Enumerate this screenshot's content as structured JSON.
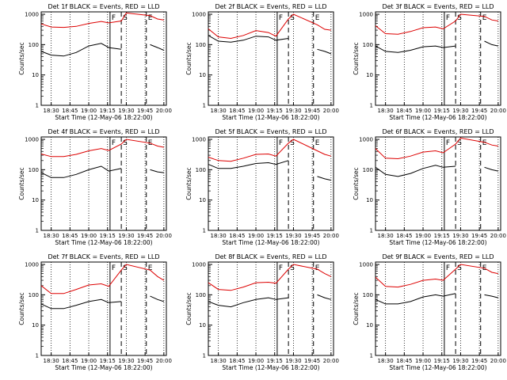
{
  "figure": {
    "background": "#ffffff"
  },
  "colors": {
    "events": "#000000",
    "lld": "#dd0000",
    "axis": "#000000"
  },
  "shared": {
    "xlabel": "Start Time (12-May-06 18:22:00)",
    "ylabel": "Counts/sec",
    "xticks": [
      "18:30",
      "18:45",
      "19:00",
      "19:15",
      "19:30",
      "19:45",
      "20:00"
    ],
    "yticks": [
      "1",
      "10",
      "100",
      "1000"
    ],
    "ylim": [
      1,
      1200
    ],
    "yscale": "log",
    "marks": [
      {
        "time": "19:17",
        "symbol": "F"
      },
      {
        "time": "19:26",
        "symbol": "S"
      },
      {
        "time": "19:46",
        "symbol": "E"
      }
    ]
  },
  "chart_data": [
    {
      "type": "line",
      "title": "Det 1f  BLACK = Events, RED = LLD",
      "x": [
        "18:22",
        "18:30",
        "18:40",
        "18:50",
        "19:00",
        "19:10",
        "19:16",
        "19:26",
        "19:30",
        "19:49",
        "19:55",
        "20:00"
      ],
      "series": [
        {
          "name": "Events",
          "values": [
            60,
            45,
            42,
            55,
            90,
            110,
            80,
            70,
            null,
            100,
            80,
            65
          ]
        },
        {
          "name": "LLD",
          "values": [
            480,
            380,
            370,
            400,
            500,
            580,
            520,
            600,
            1100,
            900,
            700,
            650
          ]
        }
      ]
    },
    {
      "type": "line",
      "title": "Det 2f  BLACK = Events, RED = LLD",
      "x": [
        "18:22",
        "18:30",
        "18:40",
        "18:50",
        "19:00",
        "19:10",
        "19:16",
        "19:26",
        "19:30",
        "19:49",
        "19:55",
        "20:00"
      ],
      "series": [
        {
          "name": "Events",
          "values": [
            200,
            130,
            120,
            140,
            190,
            180,
            140,
            160,
            null,
            70,
            60,
            50
          ]
        },
        {
          "name": "LLD",
          "values": [
            330,
            180,
            160,
            200,
            290,
            250,
            190,
            700,
            1000,
            450,
            320,
            300
          ]
        }
      ]
    },
    {
      "type": "line",
      "title": "Det 3f  BLACK = Events, RED = LLD",
      "x": [
        "18:22",
        "18:30",
        "18:40",
        "18:50",
        "19:00",
        "19:10",
        "19:16",
        "19:26",
        "19:30",
        "19:49",
        "19:55",
        "20:00"
      ],
      "series": [
        {
          "name": "Events",
          "values": [
            90,
            60,
            55,
            65,
            85,
            90,
            80,
            90,
            null,
            130,
            100,
            90
          ]
        },
        {
          "name": "LLD",
          "values": [
            420,
            230,
            220,
            270,
            360,
            380,
            330,
            600,
            1000,
            850,
            650,
            600
          ]
        }
      ]
    },
    {
      "type": "line",
      "title": "Det 4f  BLACK = Events, RED = LLD",
      "x": [
        "18:22",
        "18:30",
        "18:40",
        "18:50",
        "19:00",
        "19:10",
        "19:16",
        "19:26",
        "19:30",
        "19:49",
        "19:55",
        "20:00"
      ],
      "series": [
        {
          "name": "Events",
          "values": [
            80,
            55,
            55,
            70,
            100,
            130,
            90,
            110,
            null,
            100,
            85,
            80
          ]
        },
        {
          "name": "LLD",
          "values": [
            330,
            270,
            270,
            320,
            420,
            500,
            430,
            700,
            1000,
            750,
            600,
            550
          ]
        }
      ]
    },
    {
      "type": "line",
      "title": "Det 5f  BLACK = Events, RED = LLD",
      "x": [
        "18:22",
        "18:30",
        "18:40",
        "18:50",
        "19:00",
        "19:10",
        "19:16",
        "19:26",
        "19:30",
        "19:49",
        "19:55",
        "20:00"
      ],
      "series": [
        {
          "name": "Events",
          "values": [
            150,
            110,
            110,
            130,
            160,
            170,
            150,
            200,
            null,
            60,
            50,
            45
          ]
        },
        {
          "name": "LLD",
          "values": [
            260,
            200,
            190,
            240,
            320,
            330,
            280,
            750,
            1000,
            420,
            320,
            280
          ]
        }
      ]
    },
    {
      "type": "line",
      "title": "Det 6f  BLACK = Events, RED = LLD",
      "x": [
        "18:22",
        "18:30",
        "18:40",
        "18:50",
        "19:00",
        "19:10",
        "19:16",
        "19:26",
        "19:30",
        "19:49",
        "19:55",
        "20:00"
      ],
      "series": [
        {
          "name": "Events",
          "values": [
            120,
            70,
            60,
            75,
            110,
            140,
            120,
            130,
            null,
            120,
            100,
            90
          ]
        },
        {
          "name": "LLD",
          "values": [
            500,
            240,
            230,
            280,
            380,
            420,
            360,
            700,
            1100,
            800,
            650,
            600
          ]
        }
      ]
    },
    {
      "type": "line",
      "title": "Det 7f  BLACK = Events, RED = LLD",
      "x": [
        "18:22",
        "18:30",
        "18:40",
        "18:50",
        "19:00",
        "19:10",
        "19:16",
        "19:26",
        "19:30",
        "19:49",
        "19:55",
        "20:00"
      ],
      "series": [
        {
          "name": "Events",
          "values": [
            50,
            35,
            35,
            45,
            60,
            70,
            55,
            60,
            null,
            90,
            70,
            60
          ]
        },
        {
          "name": "LLD",
          "values": [
            200,
            110,
            110,
            150,
            210,
            230,
            190,
            650,
            1000,
            650,
            400,
            300
          ]
        }
      ]
    },
    {
      "type": "line",
      "title": "Det 8f  BLACK = Events, RED = LLD",
      "x": [
        "18:22",
        "18:30",
        "18:40",
        "18:50",
        "19:00",
        "19:10",
        "19:16",
        "19:26",
        "19:30",
        "19:49",
        "19:55",
        "20:00"
      ],
      "series": [
        {
          "name": "Events",
          "values": [
            60,
            45,
            40,
            55,
            70,
            80,
            70,
            80,
            null,
            100,
            80,
            70
          ]
        },
        {
          "name": "LLD",
          "values": [
            250,
            150,
            140,
            180,
            250,
            260,
            240,
            700,
            1000,
            700,
            500,
            400
          ]
        }
      ]
    },
    {
      "type": "line",
      "title": "Det 9f  BLACK = Events, RED = LLD",
      "x": [
        "18:22",
        "18:30",
        "18:40",
        "18:50",
        "19:00",
        "19:10",
        "19:16",
        "19:26",
        "19:30",
        "19:49",
        "19:55",
        "20:00"
      ],
      "series": [
        {
          "name": "Events",
          "values": [
            70,
            50,
            50,
            60,
            85,
            100,
            90,
            110,
            null,
            100,
            90,
            80
          ]
        },
        {
          "name": "LLD",
          "values": [
            380,
            190,
            180,
            220,
            300,
            330,
            300,
            700,
            1000,
            750,
            550,
            500
          ]
        }
      ]
    }
  ]
}
